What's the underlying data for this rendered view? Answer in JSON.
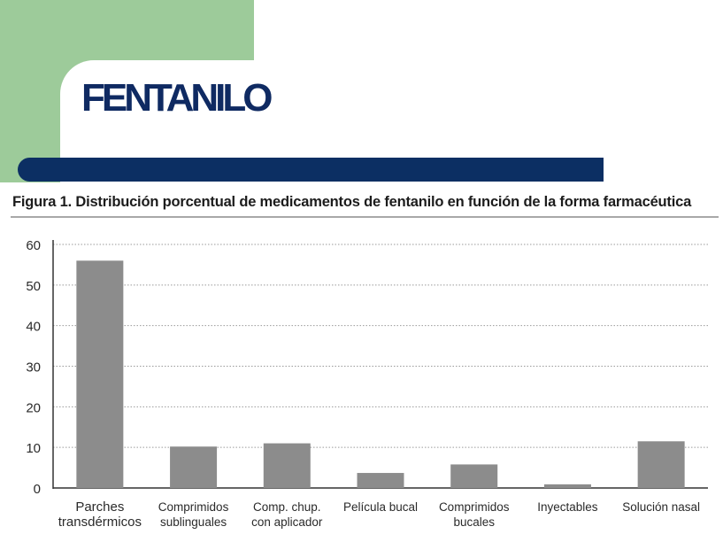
{
  "header": {
    "title": "FENTANILO"
  },
  "colors": {
    "green_block": "#9dcb9a",
    "title_color": "#0f2a62",
    "blue_bar": "#0c2f63",
    "bar_fill": "#8c8c8c"
  },
  "chart_data": {
    "type": "bar",
    "title": "Figura 1. Distribución porcentual de medicamentos de fentanilo en función de la forma farmacéutica",
    "xlabel": "",
    "ylabel": "",
    "ylim": [
      0,
      60
    ],
    "yticks": [
      0,
      10,
      20,
      30,
      40,
      50,
      60
    ],
    "grid": true,
    "categories": [
      [
        "Parches",
        "transdérmicos"
      ],
      [
        "Comprimidos",
        "sublinguales"
      ],
      [
        "Comp. chup.",
        "con aplicador"
      ],
      [
        "Película bucal"
      ],
      [
        "Comprimidos",
        "bucales"
      ],
      [
        "Inyectables"
      ],
      [
        "Solución nasal"
      ]
    ],
    "values": [
      56,
      10.2,
      11,
      3.7,
      5.8,
      0.9,
      11.5
    ]
  }
}
